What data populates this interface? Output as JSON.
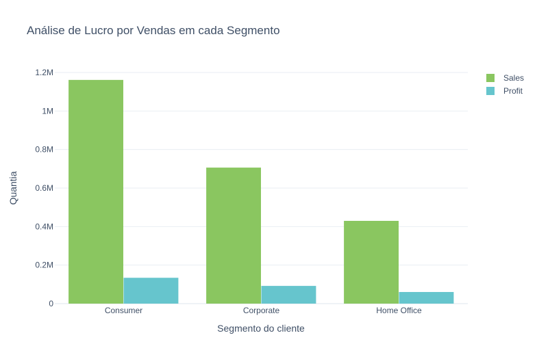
{
  "chart_data": {
    "type": "bar",
    "title": "Análise de Lucro por Vendas em cada Segmento",
    "xlabel": "Segmento do cliente",
    "ylabel": "Quantia",
    "categories": [
      "Consumer",
      "Corporate",
      "Home Office"
    ],
    "series": [
      {
        "name": "Sales",
        "values": [
          1161401,
          706146,
          429653
        ],
        "color": "#8ac660"
      },
      {
        "name": "Profit",
        "values": [
          134119,
          91979,
          60299
        ],
        "color": "#66c5cd"
      }
    ],
    "ylim": [
      0,
      1200000
    ],
    "yticks": [
      {
        "value": 0,
        "label": "0"
      },
      {
        "value": 200000,
        "label": "0.2M"
      },
      {
        "value": 400000,
        "label": "0.4M"
      },
      {
        "value": 600000,
        "label": "0.6M"
      },
      {
        "value": 800000,
        "label": "0.8M"
      },
      {
        "value": 1000000,
        "label": "1M"
      },
      {
        "value": 1200000,
        "label": "1.2M"
      }
    ],
    "grid": true,
    "legend_position": "top-right"
  }
}
